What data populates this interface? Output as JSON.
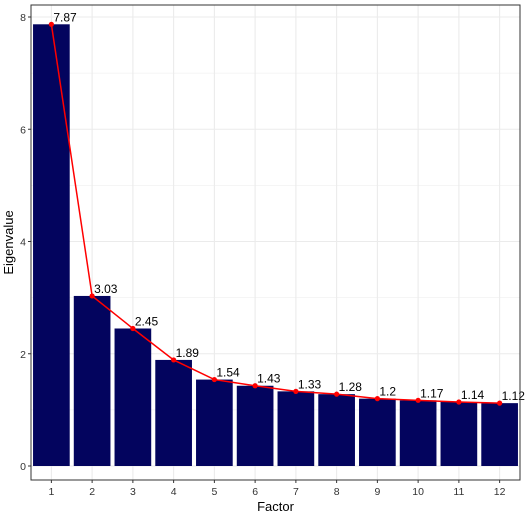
{
  "chart_data": {
    "type": "bar",
    "xlabel": "Factor",
    "ylabel": "Eigenvalue",
    "categories": [
      "1",
      "2",
      "3",
      "4",
      "5",
      "6",
      "7",
      "8",
      "9",
      "10",
      "11",
      "12"
    ],
    "values": [
      7.87,
      3.03,
      2.45,
      1.89,
      1.54,
      1.43,
      1.33,
      1.28,
      1.2,
      1.17,
      1.14,
      1.12
    ],
    "value_labels": [
      "7.87",
      "3.03",
      "2.45",
      "1.89",
      "1.54",
      "1.43",
      "1.33",
      "1.28",
      "1.2",
      "1.17",
      "1.14",
      "1.12"
    ],
    "yticks": [
      0,
      2,
      4,
      6,
      8
    ],
    "ylim": [
      0,
      8.2
    ],
    "grid": true,
    "overlay": "line-with-points",
    "colors": {
      "bar": "#03045e",
      "line": "#ff0000",
      "grid": "#ebebeb",
      "panel_border": "#333333"
    }
  }
}
